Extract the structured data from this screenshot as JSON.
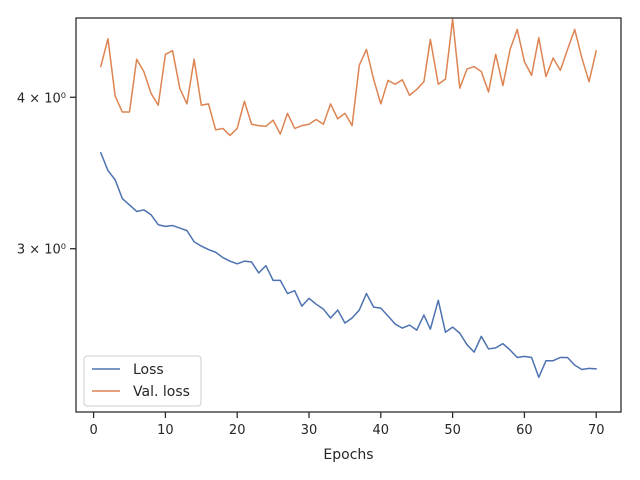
{
  "chart_data": {
    "type": "line",
    "title": "",
    "xlabel": "Epochs",
    "ylabel": "",
    "yscale": "log",
    "xlim": [
      -2.45,
      73.45
    ],
    "ylim": [
      2.2,
      4.65
    ],
    "grid": false,
    "legend": "lower-left",
    "x_ticks": [
      0,
      10,
      20,
      30,
      40,
      50,
      60,
      70
    ],
    "y_ticks": [
      {
        "value": 3,
        "label": "3 × 10⁰"
      },
      {
        "value": 4,
        "label": "4 × 10⁰"
      }
    ],
    "x": [
      1,
      2,
      3,
      4,
      5,
      6,
      7,
      8,
      9,
      10,
      11,
      12,
      13,
      14,
      15,
      16,
      17,
      18,
      19,
      20,
      21,
      22,
      23,
      24,
      25,
      26,
      27,
      28,
      29,
      30,
      31,
      32,
      33,
      34,
      35,
      36,
      37,
      38,
      39,
      40,
      41,
      42,
      43,
      44,
      45,
      46,
      46.9,
      48,
      49,
      50,
      51,
      52,
      53,
      54,
      55,
      56,
      57,
      58,
      59,
      60,
      61,
      62,
      63,
      64,
      65,
      66,
      67,
      68,
      69,
      70
    ],
    "series": [
      {
        "name": "Loss",
        "color": "#4c72b0",
        "values": [
          3.6,
          3.48,
          3.42,
          3.3,
          3.26,
          3.22,
          3.23,
          3.2,
          3.14,
          3.13,
          3.135,
          3.12,
          3.105,
          3.04,
          3.015,
          2.995,
          2.98,
          2.95,
          2.93,
          2.915,
          2.93,
          2.925,
          2.865,
          2.905,
          2.825,
          2.825,
          2.755,
          2.77,
          2.69,
          2.73,
          2.7,
          2.675,
          2.63,
          2.67,
          2.605,
          2.63,
          2.67,
          2.755,
          2.685,
          2.68,
          2.64,
          2.6,
          2.58,
          2.595,
          2.57,
          2.645,
          2.575,
          2.72,
          2.56,
          2.585,
          2.555,
          2.5,
          2.465,
          2.54,
          2.48,
          2.485,
          2.505,
          2.475,
          2.44,
          2.445,
          2.44,
          2.35,
          2.425,
          2.425,
          2.44,
          2.44,
          2.405,
          2.385,
          2.39,
          2.388
        ]
      },
      {
        "name": "Val. loss",
        "color": "#dd8452",
        "values": [
          4.24,
          4.47,
          4.01,
          3.89,
          3.89,
          4.3,
          4.2,
          4.03,
          3.94,
          4.34,
          4.37,
          4.07,
          3.95,
          4.3,
          3.94,
          3.95,
          3.76,
          3.77,
          3.72,
          3.77,
          3.97,
          3.8,
          3.79,
          3.785,
          3.83,
          3.73,
          3.88,
          3.77,
          3.79,
          3.8,
          3.835,
          3.8,
          3.95,
          3.84,
          3.88,
          3.79,
          4.25,
          4.38,
          4.14,
          3.95,
          4.13,
          4.1,
          4.135,
          4.015,
          4.06,
          4.12,
          4.465,
          4.1,
          4.14,
          4.64,
          4.07,
          4.22,
          4.24,
          4.2,
          4.04,
          4.34,
          4.09,
          4.38,
          4.55,
          4.28,
          4.17,
          4.48,
          4.16,
          4.31,
          4.21,
          4.38,
          4.55,
          4.31,
          4.12,
          4.37
        ]
      }
    ]
  }
}
